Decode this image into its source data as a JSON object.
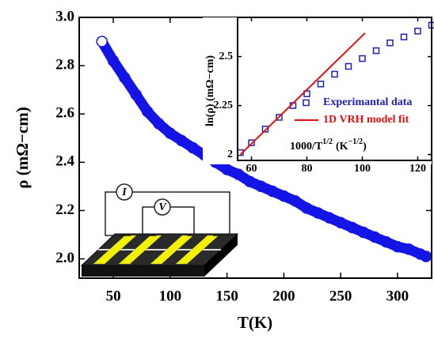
{
  "chart_data": [
    {
      "type": "scatter",
      "x_label": "T(K)",
      "y_label": "ρ (mΩ−cm)",
      "color": "#1414e6",
      "x": [
        40,
        50,
        60,
        70,
        80,
        90,
        100,
        110,
        120,
        130,
        140,
        150,
        160,
        170,
        180,
        190,
        200,
        210,
        220,
        230,
        240,
        250,
        260,
        270,
        280,
        290,
        300,
        310,
        320,
        325
      ],
      "values": [
        2.9,
        2.82,
        2.75,
        2.68,
        2.61,
        2.56,
        2.52,
        2.49,
        2.46,
        2.43,
        2.4,
        2.37,
        2.35,
        2.32,
        2.3,
        2.28,
        2.26,
        2.24,
        2.21,
        2.19,
        2.17,
        2.15,
        2.13,
        2.11,
        2.09,
        2.07,
        2.05,
        2.04,
        2.02,
        2.01
      ],
      "xlim": [
        20,
        330
      ],
      "xticks": [
        50,
        100,
        150,
        200,
        250,
        300
      ],
      "ylim": [
        1.92,
        3.0
      ],
      "yticks": [
        {
          "value": 2.0,
          "label": "2.0"
        },
        2.2,
        2.4,
        2.6,
        2.8,
        {
          "value": 3.0,
          "label": "3.0"
        }
      ]
    },
    {
      "type": "scatter",
      "y_label": "ln(ρ) (mΩ−cm)",
      "x_label_parts": [
        "1000/T",
        "1/2",
        "(K",
        "−1/2",
        ")"
      ],
      "xlim": [
        55,
        125
      ],
      "xticks": [
        60,
        80,
        100,
        120
      ],
      "ylim": [
        1.97,
        2.7
      ],
      "yticks": [
        2,
        2.25,
        2.5
      ],
      "series": [
        {
          "name": "Experimantal data",
          "type": "scatter",
          "color": "#2020b0",
          "x": [
            56,
            60,
            65,
            70,
            75,
            80,
            85,
            90,
            95,
            100,
            105,
            110,
            115,
            120,
            125
          ],
          "values": [
            2.01,
            2.06,
            2.13,
            2.19,
            2.25,
            2.31,
            2.36,
            2.41,
            2.45,
            2.49,
            2.53,
            2.57,
            2.6,
            2.63,
            2.66
          ]
        },
        {
          "name": "1D VRH model fit",
          "type": "line",
          "color": "#e01010",
          "x": [
            56,
            101
          ],
          "values": [
            2.0,
            2.62
          ]
        }
      ]
    }
  ],
  "diagram": {
    "current_label": "I",
    "voltage_label": "V"
  }
}
